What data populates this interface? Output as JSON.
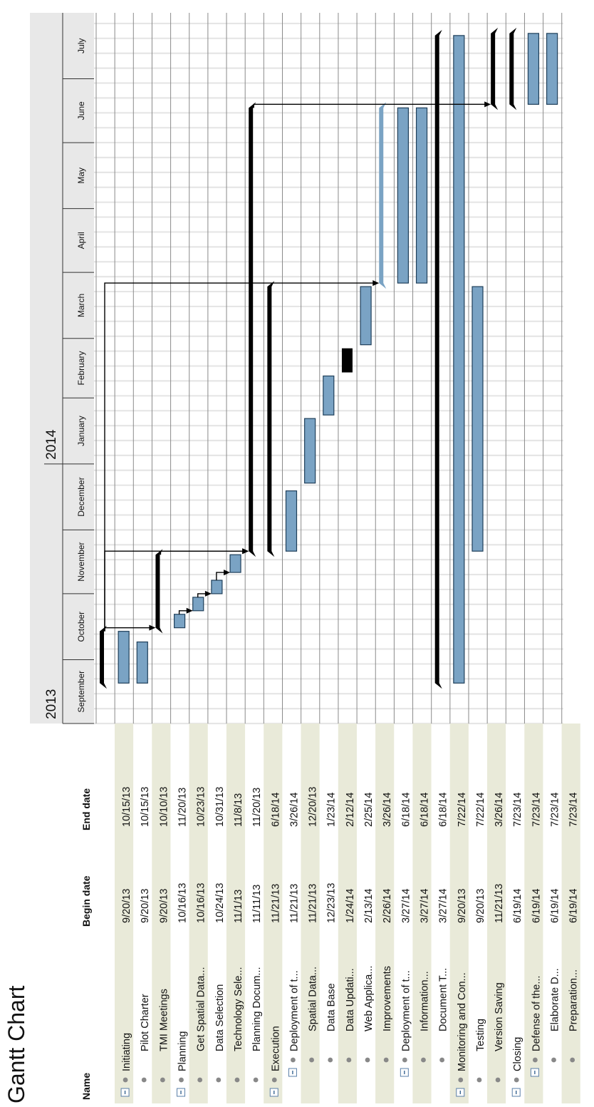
{
  "title": "Gantt Chart",
  "columns": {
    "name": "Name",
    "begin": "Begin date",
    "end": "End date"
  },
  "years": [
    "2013",
    "2014"
  ],
  "months": [
    "September",
    "October",
    "November",
    "December",
    "January",
    "February",
    "March",
    "April",
    "May",
    "June",
    "July"
  ],
  "colors": {
    "bar": "#7aa3c4",
    "bar_stroke": "#1f3f5a",
    "summary": "#000000",
    "milestone": "#000000",
    "selected": "#7aa3c4",
    "row_alt": "#e9ead9",
    "header_bg": "#e8e8e8",
    "grid": "#8a8a8a",
    "stripe": "#e6e6e6"
  },
  "chart_data": {
    "type": "gantt",
    "title": "Gantt Chart",
    "time_axis": {
      "start": "2013-09-01",
      "end": "2014-07-31"
    },
    "tasks": [
      {
        "name": "Initiating",
        "begin": "9/20/13",
        "end": "10/15/13",
        "level": 0,
        "kind": "summary",
        "expand": true,
        "start": "2013-09-20",
        "finish": "2013-10-15"
      },
      {
        "name": "Pilot Charter",
        "begin": "9/20/13",
        "end": "10/15/13",
        "level": 1,
        "kind": "task",
        "start": "2013-09-20",
        "finish": "2013-10-15"
      },
      {
        "name": "TMI Meetings",
        "begin": "9/20/13",
        "end": "10/10/13",
        "level": 1,
        "kind": "task",
        "start": "2013-09-20",
        "finish": "2013-10-10"
      },
      {
        "name": "Planning",
        "begin": "10/16/13",
        "end": "11/20/13",
        "level": 0,
        "kind": "summary",
        "expand": true,
        "start": "2013-10-16",
        "finish": "2013-11-20"
      },
      {
        "name": "Get Spatial Data...",
        "begin": "10/16/13",
        "end": "10/23/13",
        "level": 1,
        "kind": "task",
        "start": "2013-10-16",
        "finish": "2013-10-23"
      },
      {
        "name": "Data Selection",
        "begin": "10/24/13",
        "end": "10/31/13",
        "level": 1,
        "kind": "task",
        "start": "2013-10-24",
        "finish": "2013-10-31"
      },
      {
        "name": "Technology Sele...",
        "begin": "11/1/13",
        "end": "11/8/13",
        "level": 1,
        "kind": "task",
        "start": "2013-11-01",
        "finish": "2013-11-08"
      },
      {
        "name": "Planning Docum...",
        "begin": "11/11/13",
        "end": "11/20/13",
        "level": 1,
        "kind": "task",
        "start": "2013-11-11",
        "finish": "2013-11-20"
      },
      {
        "name": "Execution",
        "begin": "11/21/13",
        "end": "6/18/14",
        "level": 0,
        "kind": "summary",
        "expand": true,
        "start": "2013-11-21",
        "finish": "2014-06-18"
      },
      {
        "name": "Deployment of t...",
        "begin": "11/21/13",
        "end": "3/26/14",
        "level": 1,
        "kind": "summary",
        "expand": true,
        "start": "2013-11-21",
        "finish": "2014-03-26"
      },
      {
        "name": "Spatial Data...",
        "begin": "11/21/13",
        "end": "12/20/13",
        "level": 2,
        "kind": "task",
        "start": "2013-11-21",
        "finish": "2013-12-20"
      },
      {
        "name": "Data Base",
        "begin": "12/23/13",
        "end": "1/23/14",
        "level": 2,
        "kind": "task",
        "start": "2013-12-23",
        "finish": "2014-01-23"
      },
      {
        "name": "Data Updati...",
        "begin": "1/24/14",
        "end": "2/12/14",
        "level": 2,
        "kind": "task",
        "start": "2014-01-24",
        "finish": "2014-02-12"
      },
      {
        "name": "Web Applica...",
        "begin": "2/13/14",
        "end": "2/25/14",
        "level": 2,
        "kind": "milestone",
        "start": "2014-02-13",
        "finish": "2014-02-25"
      },
      {
        "name": "Improvements",
        "begin": "2/26/14",
        "end": "3/26/14",
        "level": 2,
        "kind": "task",
        "start": "2014-02-26",
        "finish": "2014-03-26"
      },
      {
        "name": "Deployment of t...",
        "begin": "3/27/14",
        "end": "6/18/14",
        "level": 1,
        "kind": "summary",
        "expand": true,
        "selected": true,
        "start": "2014-03-27",
        "finish": "2014-06-18"
      },
      {
        "name": "Information...",
        "begin": "3/27/14",
        "end": "6/18/14",
        "level": 2,
        "kind": "task",
        "start": "2014-03-27",
        "finish": "2014-06-18"
      },
      {
        "name": "Document T...",
        "begin": "3/27/14",
        "end": "6/18/14",
        "level": 2,
        "kind": "task",
        "start": "2014-03-27",
        "finish": "2014-06-18"
      },
      {
        "name": "Monitoring and Con...",
        "begin": "9/20/13",
        "end": "7/22/14",
        "level": 0,
        "kind": "summary",
        "expand": true,
        "start": "2013-09-20",
        "finish": "2014-07-22"
      },
      {
        "name": "Testing",
        "begin": "9/20/13",
        "end": "7/22/14",
        "level": 1,
        "kind": "task",
        "start": "2013-09-20",
        "finish": "2014-07-22"
      },
      {
        "name": "Version Saving",
        "begin": "11/21/13",
        "end": "3/26/14",
        "level": 1,
        "kind": "task",
        "start": "2013-11-21",
        "finish": "2014-03-26"
      },
      {
        "name": "Closing",
        "begin": "6/19/14",
        "end": "7/23/14",
        "level": 0,
        "kind": "summary",
        "expand": true,
        "start": "2014-06-19",
        "finish": "2014-07-23"
      },
      {
        "name": "Defense of the...",
        "begin": "6/19/14",
        "end": "7/23/14",
        "level": 1,
        "kind": "summary",
        "expand": true,
        "start": "2014-06-19",
        "finish": "2014-07-23"
      },
      {
        "name": "Elaborate D...",
        "begin": "6/19/14",
        "end": "7/23/14",
        "level": 2,
        "kind": "task",
        "start": "2014-06-19",
        "finish": "2014-07-23"
      },
      {
        "name": "Preparation...",
        "begin": "6/19/14",
        "end": "7/23/14",
        "level": 2,
        "kind": "task",
        "start": "2014-06-19",
        "finish": "2014-07-23"
      }
    ],
    "dependencies": [
      {
        "from": 0,
        "to": 3
      },
      {
        "from": 3,
        "to": 8
      },
      {
        "from": 4,
        "to": 5
      },
      {
        "from": 5,
        "to": 6
      },
      {
        "from": 6,
        "to": 7
      },
      {
        "from": 0,
        "to": 8
      },
      {
        "from": 0,
        "to": 15
      },
      {
        "from": 8,
        "to": 21
      }
    ]
  }
}
